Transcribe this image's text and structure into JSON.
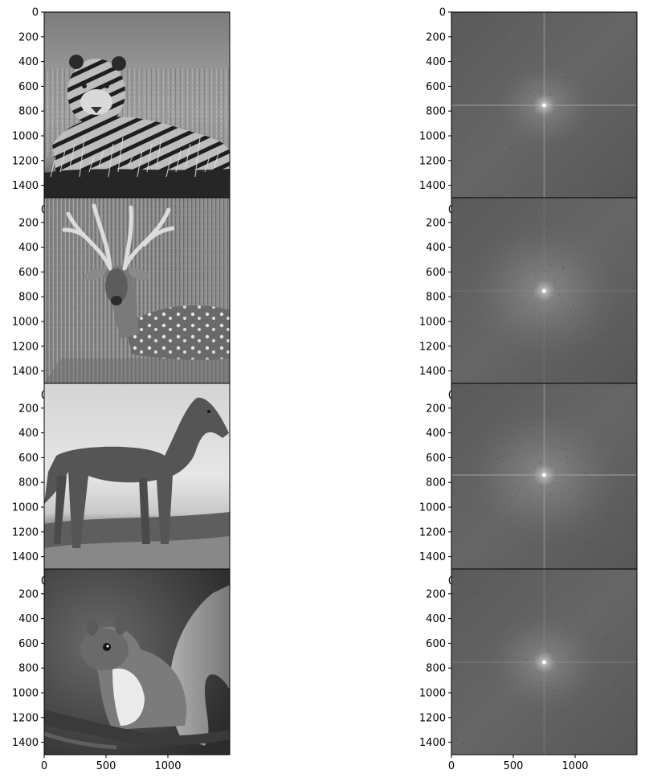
{
  "chart_data": [
    {
      "type": "heatmap",
      "subject": "tiger",
      "kind": "grayscale-photo",
      "xlim": [
        0,
        1500
      ],
      "ylim": [
        1500,
        0
      ],
      "x_ticks": [],
      "y_ticks": [
        0,
        200,
        400,
        600,
        800,
        1000,
        1200,
        1400
      ],
      "x_tick_labels": [],
      "y_tick_labels": [
        "0",
        "200",
        "400",
        "600",
        "800",
        "1000",
        "1200",
        "1400"
      ]
    },
    {
      "type": "heatmap",
      "subject": "tiger",
      "kind": "fft-magnitude-spectrum",
      "xlim": [
        0,
        1500
      ],
      "ylim": [
        1500,
        0
      ],
      "x_ticks": [],
      "y_ticks": [
        0,
        200,
        400,
        600,
        800,
        1000,
        1200,
        1400
      ],
      "x_tick_labels": [],
      "y_tick_labels": [
        "0",
        "200",
        "400",
        "600",
        "800",
        "1000",
        "1200",
        "1400"
      ]
    },
    {
      "type": "heatmap",
      "subject": "deer",
      "kind": "grayscale-photo",
      "xlim": [
        0,
        1500
      ],
      "ylim": [
        1500,
        0
      ],
      "x_ticks": [],
      "y_ticks": [
        200,
        400,
        600,
        800,
        1000,
        1200,
        1400
      ],
      "x_tick_labels": [],
      "y_tick_labels": [
        "200",
        "400",
        "600",
        "800",
        "1000",
        "1200",
        "1400"
      ]
    },
    {
      "type": "heatmap",
      "subject": "deer",
      "kind": "fft-magnitude-spectrum",
      "xlim": [
        0,
        1500
      ],
      "ylim": [
        1500,
        0
      ],
      "x_ticks": [],
      "y_ticks": [
        200,
        400,
        600,
        800,
        1000,
        1200,
        1400
      ],
      "x_tick_labels": [],
      "y_tick_labels": [
        "200",
        "400",
        "600",
        "800",
        "1000",
        "1200",
        "1400"
      ]
    },
    {
      "type": "heatmap",
      "subject": "horse",
      "kind": "grayscale-photo",
      "xlim": [
        0,
        1500
      ],
      "ylim": [
        1500,
        0
      ],
      "x_ticks": [],
      "y_ticks": [
        200,
        400,
        600,
        800,
        1000,
        1200,
        1400
      ],
      "x_tick_labels": [],
      "y_tick_labels": [
        "200",
        "400",
        "600",
        "800",
        "1000",
        "1200",
        "1400"
      ]
    },
    {
      "type": "heatmap",
      "subject": "horse",
      "kind": "fft-magnitude-spectrum",
      "xlim": [
        0,
        1500
      ],
      "ylim": [
        1500,
        0
      ],
      "x_ticks": [],
      "y_ticks": [
        200,
        400,
        600,
        800,
        1000,
        1200,
        1400
      ],
      "x_tick_labels": [],
      "y_tick_labels": [
        "200",
        "400",
        "600",
        "800",
        "1000",
        "1200",
        "1400"
      ]
    },
    {
      "type": "heatmap",
      "subject": "squirrel",
      "kind": "grayscale-photo",
      "xlim": [
        0,
        1500
      ],
      "ylim": [
        1500,
        0
      ],
      "x_ticks": [
        0,
        500,
        1000
      ],
      "y_ticks": [
        200,
        400,
        600,
        800,
        1000,
        1200,
        1400
      ],
      "x_tick_labels": [
        "0",
        "500",
        "1000"
      ],
      "y_tick_labels": [
        "200",
        "400",
        "600",
        "800",
        "1000",
        "1200",
        "1400"
      ]
    },
    {
      "type": "heatmap",
      "subject": "squirrel",
      "kind": "fft-magnitude-spectrum",
      "xlim": [
        0,
        1500
      ],
      "ylim": [
        1500,
        0
      ],
      "x_ticks": [
        0,
        500,
        1000
      ],
      "y_ticks": [
        200,
        400,
        600,
        800,
        1000,
        1200,
        1400
      ],
      "x_tick_labels": [
        "0",
        "500",
        "1000"
      ],
      "y_tick_labels": [
        "200",
        "400",
        "600",
        "800",
        "1000",
        "1200",
        "1400"
      ]
    }
  ],
  "overlap_labels": [
    "0",
    "0",
    "0",
    "0",
    "0",
    "0"
  ],
  "colors": {
    "tiger_base": "#8d8d8d",
    "deer_base": "#8a8a8a",
    "horse_sky": "#dddddd",
    "horse_body": "#5a5a5a",
    "squirrel_bg": "#4a4a4a",
    "fft_base": "#5e5e5e"
  }
}
